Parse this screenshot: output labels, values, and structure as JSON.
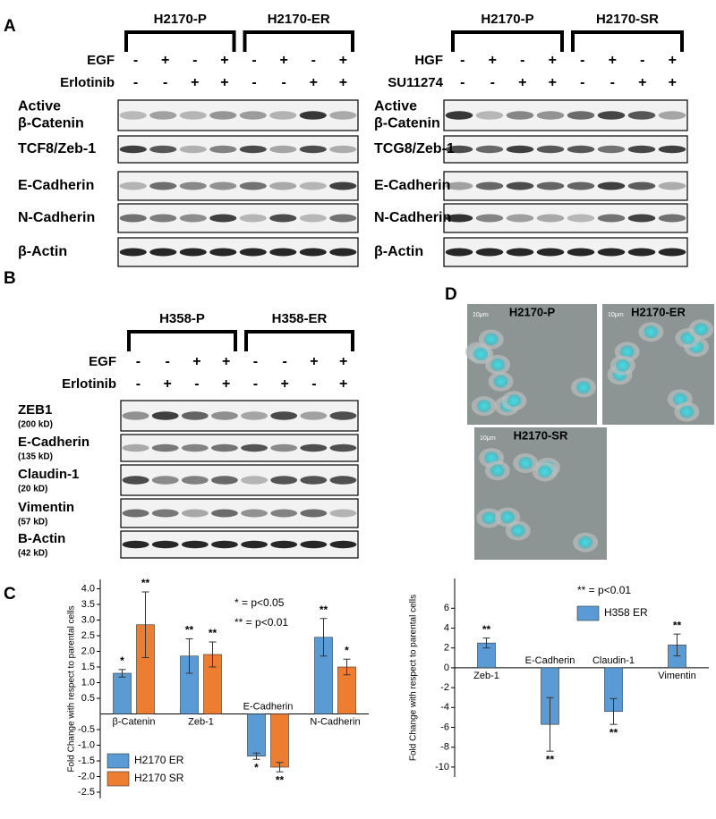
{
  "panel_a": {
    "letter": "A",
    "blots": [
      {
        "groups": [
          "H2170-P",
          "H2170-ER"
        ],
        "treatments": [
          {
            "name": "EGF",
            "signs": [
              "-",
              "+",
              "-",
              "+",
              "-",
              "+",
              "-",
              "+"
            ]
          },
          {
            "name": "Erlotinib",
            "signs": [
              "-",
              "-",
              "+",
              "+",
              "-",
              "-",
              "+",
              "+"
            ]
          }
        ],
        "proteins": [
          [
            "Active",
            "β-Catenin"
          ],
          [
            "TCF8/Zeb-1"
          ],
          [
            "E-Cadherin"
          ],
          [
            "N-Cadherin"
          ],
          [
            "β-Actin"
          ]
        ]
      },
      {
        "groups": [
          "H2170-P",
          "H2170-SR"
        ],
        "treatments": [
          {
            "name": "HGF",
            "signs": [
              "-",
              "+",
              "-",
              "+",
              "-",
              "+",
              "-",
              "+"
            ]
          },
          {
            "name": "SU11274",
            "signs": [
              "-",
              "-",
              "+",
              "+",
              "-",
              "-",
              "+",
              "+"
            ]
          }
        ],
        "proteins": [
          [
            "Active",
            "β-Catenin"
          ],
          [
            "TCG8/Zeb-1"
          ],
          [
            "E-Cadherin"
          ],
          [
            "N-Cadherin"
          ],
          [
            "β-Actin"
          ]
        ]
      }
    ]
  },
  "panel_b": {
    "letter": "B",
    "groups": [
      "H358-P",
      "H358-ER"
    ],
    "treatments": [
      {
        "name": "EGF",
        "signs": [
          "-",
          "-",
          "+",
          "+",
          "-",
          "-",
          "+",
          "+"
        ]
      },
      {
        "name": "Erlotinib",
        "signs": [
          "-",
          "+",
          "-",
          "+",
          "-",
          "+",
          "-",
          "+"
        ]
      }
    ],
    "proteins": [
      {
        "name": "ZEB1",
        "size": "(200 kD)"
      },
      {
        "name": "E-Cadherin",
        "size": "(135 kD)"
      },
      {
        "name": "Claudin-1",
        "size": "(20 kD)"
      },
      {
        "name": "Vimentin",
        "size": "(57 kD)"
      },
      {
        "name": "B-Actin",
        "size": "(42 kD)"
      }
    ]
  },
  "panel_d": {
    "letter": "D",
    "images": [
      {
        "title": "H2170-P",
        "scale": "10μm"
      },
      {
        "title": "H2170-ER",
        "scale": "10μm"
      },
      {
        "title": "H2170-SR",
        "scale": "10μm"
      }
    ]
  },
  "panel_c": {
    "letter": "C"
  },
  "chart_data": [
    {
      "type": "bar",
      "y_label": "Fold Change with respect to parental cells",
      "categories": [
        "β-Catenin",
        "Zeb-1",
        "E-Cadherin",
        "N-Cadherin"
      ],
      "series": [
        {
          "name": "H2170 ER",
          "color": "#5b9bd5",
          "values": [
            1.3,
            1.85,
            -1.35,
            2.45
          ],
          "errors": [
            0.12,
            0.55,
            0.1,
            0.6
          ],
          "significance": [
            "*",
            "**",
            "*",
            "**"
          ]
        },
        {
          "name": "H2170 SR",
          "color": "#ed7d31",
          "values": [
            2.85,
            1.9,
            -1.7,
            1.5
          ],
          "errors": [
            1.05,
            0.4,
            0.15,
            0.25
          ],
          "significance": [
            "**",
            "**",
            "**",
            "*"
          ]
        }
      ],
      "ylim": [
        -2.7,
        4.3
      ],
      "yticks": [
        {
          "value": 4,
          "label": "4.0"
        },
        3.5,
        {
          "value": 3,
          "label": "3.0"
        },
        2.5,
        {
          "value": 2,
          "label": "2.0"
        },
        1.5,
        {
          "value": 1,
          "label": "1.0"
        },
        0.5,
        -0.5,
        {
          "value": -1,
          "label": "-1.0"
        },
        -1.5,
        {
          "value": -2,
          "label": "-2.0"
        },
        -2.5
      ],
      "annotations": [
        "* = p<0.05",
        "** = p<0.01"
      ],
      "legend": "lower-left"
    },
    {
      "type": "bar",
      "y_label": "Fold Change with respect to parental cells",
      "categories": [
        "Zeb-1",
        "E-Cadherin",
        "Claudin-1",
        "Vimentin"
      ],
      "series": [
        {
          "name": "H358 ER",
          "color": "#5b9bd5",
          "values": [
            2.5,
            -5.7,
            -4.4,
            2.3
          ],
          "errors": [
            0.5,
            2.7,
            1.3,
            1.1
          ],
          "significance": [
            "**",
            "**",
            "**",
            "**"
          ]
        }
      ],
      "ylim": [
        -11,
        9
      ],
      "yticks": [
        6,
        4,
        2,
        0,
        -2,
        -4,
        -6,
        -8,
        -10
      ],
      "annotations": [
        "** = p<0.01"
      ],
      "legend": "upper-right"
    }
  ]
}
